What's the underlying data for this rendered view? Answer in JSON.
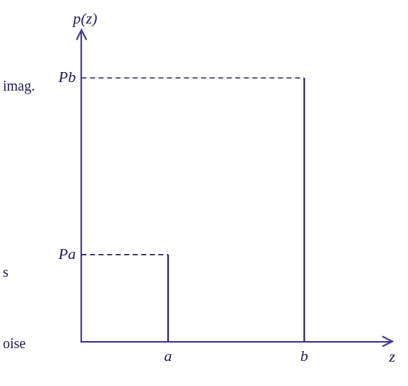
{
  "chart_data": {
    "type": "impulse",
    "x_label": "z",
    "y_label": "p(z)",
    "x": [
      0.28,
      0.72
    ],
    "values": [
      0.28,
      0.85
    ],
    "xlim": [
      0,
      1
    ],
    "ylim": [
      0,
      1
    ],
    "xticks": [
      {
        "value": 0.28,
        "label": "a"
      },
      {
        "value": 0.72,
        "label": "b"
      }
    ],
    "yticks": [
      {
        "value": 0.28,
        "label": "Pa"
      },
      {
        "value": 0.85,
        "label": "Pb"
      }
    ],
    "annotations": [
      "imag.",
      "s",
      "oise"
    ],
    "color": "#23234f",
    "line_style": "dashed",
    "grid": false
  }
}
